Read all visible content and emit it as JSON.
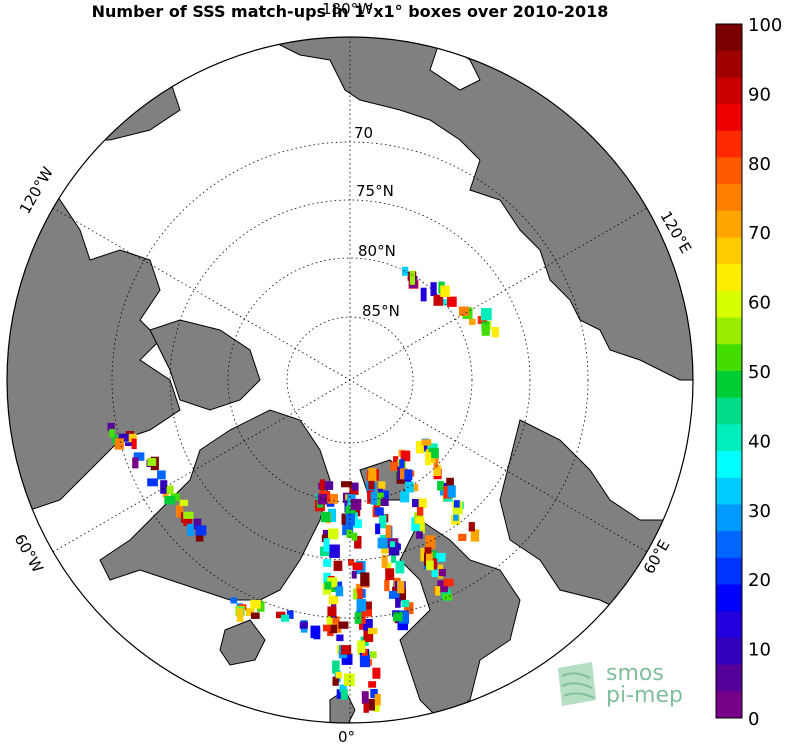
{
  "title": "Number of SSS match-ups in 1°x1° boxes over 2010-2018",
  "map": {
    "projection": "north polar stereographic",
    "land_color": "#808080",
    "ocean_color": "#ffffff",
    "meridian_labels": [
      "180°W",
      "120°W",
      "120°E",
      "60°W",
      "60°E",
      "0°"
    ],
    "parallel_labels": [
      "70",
      "75°N",
      "80°N",
      "85°N"
    ]
  },
  "colorbar": {
    "ticks": [
      "100",
      "90",
      "80",
      "70",
      "60",
      "50",
      "40",
      "30",
      "20",
      "10",
      "0"
    ],
    "min": 0,
    "max": 100,
    "colors": [
      "#7a0000",
      "#a00000",
      "#c80000",
      "#ee0000",
      "#ff2a00",
      "#ff5a00",
      "#ff8000",
      "#ffa500",
      "#ffcc00",
      "#ffee00",
      "#d8ff00",
      "#99ee00",
      "#44dd00",
      "#00cc33",
      "#00dd88",
      "#00eebb",
      "#00ffff",
      "#00ccff",
      "#0099ff",
      "#0066ff",
      "#0033ff",
      "#0000ff",
      "#2200dd",
      "#3300bb",
      "#550099",
      "#770088"
    ]
  },
  "logo": {
    "line1": "smos",
    "line2": "pi-mep"
  }
}
